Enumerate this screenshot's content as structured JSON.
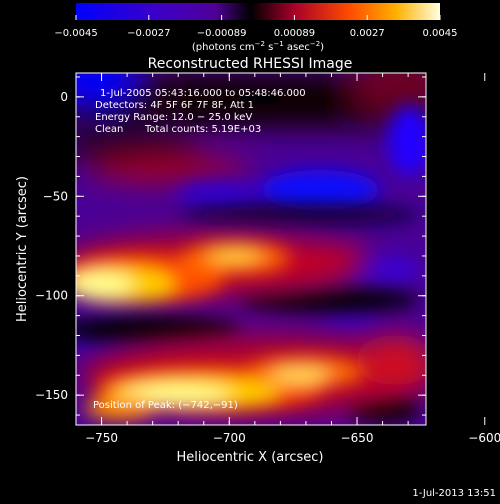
{
  "colorbar": {
    "ticks": [
      "−0.0045",
      "−0.0027",
      "−0.00089",
      "0.00089",
      "0.0027",
      "0.0045"
    ],
    "unit_main": "(photons cm",
    "unit_exp1": "−2",
    "unit_mid": " s",
    "unit_exp2": "−1",
    "unit_mid2": " asec",
    "unit_exp3": "−2",
    "unit_end": ")",
    "range": [
      -0.0045,
      0.0045
    ]
  },
  "chart_data": {
    "type": "heatmap",
    "title": "Reconstructed RHESSI Image",
    "xlabel": "Heliocentric X (arcsec)",
    "ylabel": "Heliocentric Y (arcsec)",
    "xlim": [
      -760,
      -623
    ],
    "ylim": [
      -165,
      12
    ],
    "x_ticks": [
      -750,
      -700,
      -650,
      -600
    ],
    "y_ticks": [
      0,
      -50,
      -100,
      -150
    ],
    "x_tick_labels": [
      "−750",
      "−700",
      "−650",
      "−600"
    ],
    "y_tick_labels": [
      "0",
      "−50",
      "−100",
      "−150"
    ],
    "colormap": [
      "#0000ff",
      "#4b00a0",
      "#000000",
      "#a0002a",
      "#ff5a00",
      "#ffff80",
      "#ffffff"
    ],
    "annotations": {
      "time": "1-Jul-2005 05:43:16.000 to 05:48:46.000",
      "detectors": "Detectors: 4F 5F 6F 7F 8F, Att 1",
      "energy": "Energy Range: 12.0 − 25.0 keV",
      "method": "Clean",
      "counts": "Total counts: 5.19E+03",
      "peak": "Position of Peak: (−742,−91)"
    },
    "peak": [
      -742,
      -91
    ],
    "features": [
      {
        "x": -748,
        "y": -93,
        "value": 0.0045
      },
      {
        "x": -710,
        "y": -80,
        "value": 0.004
      },
      {
        "x": -682,
        "y": -74,
        "value": 0.0036
      },
      {
        "x": -655,
        "y": -78,
        "value": 0.0027
      },
      {
        "x": -705,
        "y": -150,
        "value": 0.0043
      },
      {
        "x": -660,
        "y": -140,
        "value": 0.0038
      },
      {
        "x": -620,
        "y": -128,
        "value": 0.0022
      },
      {
        "x": -660,
        "y": -30,
        "value": -0.0045
      },
      {
        "x": -720,
        "y": -30,
        "value": -0.0028
      },
      {
        "x": -625,
        "y": -10,
        "value": -0.0035
      }
    ]
  },
  "footer": {
    "timestamp": "1-Jul-2013 13:51"
  }
}
